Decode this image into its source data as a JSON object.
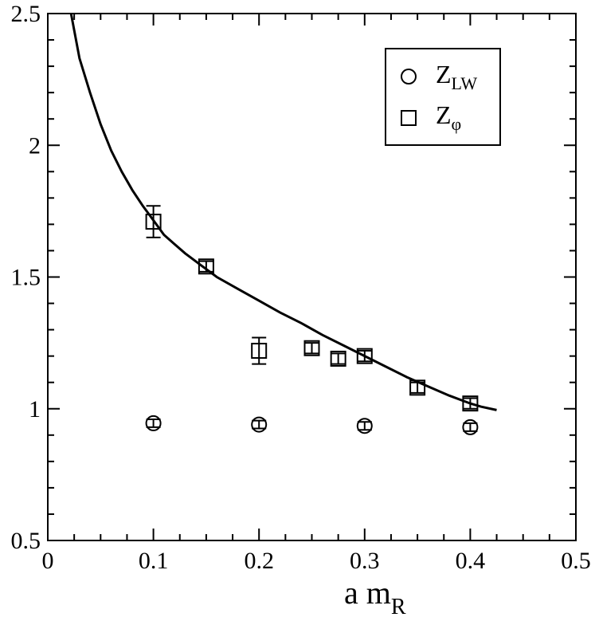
{
  "chart_data": {
    "type": "scatter",
    "xlabel_main": "a m",
    "xlabel_sub": "R",
    "ylabel": "",
    "xlim": [
      0,
      0.5
    ],
    "ylim": [
      0.5,
      2.5
    ],
    "x_ticks": [
      "0",
      "0.1",
      "0.2",
      "0.3",
      "0.4",
      "0.5"
    ],
    "y_ticks": [
      "0.5",
      "1",
      "1.5",
      "2",
      "2.5"
    ],
    "x_tick_values": [
      0,
      0.1,
      0.2,
      0.3,
      0.4,
      0.5
    ],
    "y_tick_values": [
      0.5,
      1,
      1.5,
      2,
      2.5
    ],
    "grid": false,
    "legend_position": "top-right",
    "legend": [
      {
        "marker": "circle",
        "label_main": "Z",
        "label_sub": "LW"
      },
      {
        "marker": "square",
        "label_main": "Z",
        "label_sub": "φ"
      }
    ],
    "series": [
      {
        "marker": "circle",
        "points": [
          {
            "x": 0.1,
            "y": 0.945,
            "err": 0.015
          },
          {
            "x": 0.2,
            "y": 0.94,
            "err": 0.015
          },
          {
            "x": 0.3,
            "y": 0.935,
            "err": 0.015
          },
          {
            "x": 0.4,
            "y": 0.93,
            "err": 0.015
          }
        ]
      },
      {
        "marker": "square",
        "points": [
          {
            "x": 0.1,
            "y": 1.71,
            "err": 0.06
          },
          {
            "x": 0.15,
            "y": 1.54,
            "err": 0.02
          },
          {
            "x": 0.2,
            "y": 1.22,
            "err": 0.05
          },
          {
            "x": 0.25,
            "y": 1.23,
            "err": 0.02
          },
          {
            "x": 0.275,
            "y": 1.19,
            "err": 0.02
          },
          {
            "x": 0.3,
            "y": 1.2,
            "err": 0.02
          },
          {
            "x": 0.35,
            "y": 1.08,
            "err": 0.02
          },
          {
            "x": 0.4,
            "y": 1.02,
            "err": 0.02
          }
        ]
      }
    ],
    "fit_curve": {
      "style": "solid",
      "points": [
        [
          0.022,
          2.5
        ],
        [
          0.03,
          2.33
        ],
        [
          0.04,
          2.2
        ],
        [
          0.05,
          2.08
        ],
        [
          0.06,
          1.98
        ],
        [
          0.07,
          1.9
        ],
        [
          0.08,
          1.83
        ],
        [
          0.09,
          1.77
        ],
        [
          0.1,
          1.715
        ],
        [
          0.11,
          1.66
        ],
        [
          0.12,
          1.625
        ],
        [
          0.13,
          1.59
        ],
        [
          0.14,
          1.56
        ],
        [
          0.15,
          1.53
        ],
        [
          0.16,
          1.5
        ],
        [
          0.18,
          1.455
        ],
        [
          0.2,
          1.41
        ],
        [
          0.22,
          1.365
        ],
        [
          0.24,
          1.325
        ],
        [
          0.26,
          1.28
        ],
        [
          0.28,
          1.24
        ],
        [
          0.3,
          1.2
        ],
        [
          0.32,
          1.16
        ],
        [
          0.34,
          1.12
        ],
        [
          0.36,
          1.085
        ],
        [
          0.38,
          1.05
        ],
        [
          0.4,
          1.02
        ],
        [
          0.41,
          1.008
        ],
        [
          0.425,
          0.995
        ]
      ]
    }
  }
}
